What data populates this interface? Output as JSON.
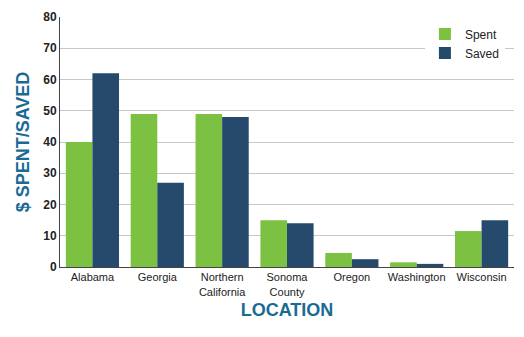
{
  "chart_data": {
    "type": "bar",
    "x_label": "LOCATION",
    "y_label": "$ SPENT/SAVED",
    "categories": [
      "Alabama",
      "Georgia",
      "Northern California",
      "Sonoma County",
      "Oregon",
      "Washington",
      "Wisconsin"
    ],
    "series": [
      {
        "name": "Spent",
        "color": "#7cc142",
        "values": [
          40,
          49,
          49,
          15,
          4.5,
          1.5,
          11.5
        ]
      },
      {
        "name": "Saved",
        "color": "#264a6b",
        "values": [
          62,
          27,
          48,
          14,
          2.5,
          1,
          15
        ]
      }
    ],
    "ylim": [
      0,
      80
    ],
    "yticks": [
      0,
      10,
      20,
      30,
      40,
      50,
      60,
      70,
      80
    ],
    "grid": true,
    "legend": "top-right"
  }
}
